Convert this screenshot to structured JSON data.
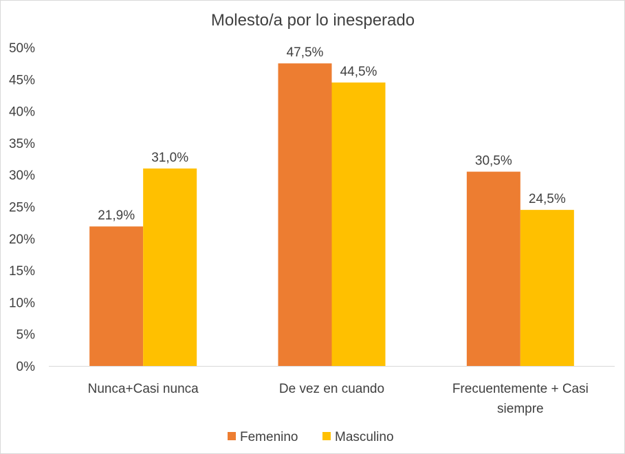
{
  "chart_data": {
    "type": "bar",
    "title": "Molesto/a por lo inesperado",
    "categories": [
      [
        "Nunca+Casi nunca"
      ],
      [
        "De vez en cuando"
      ],
      [
        "Frecuentemente + Casi",
        "siempre"
      ]
    ],
    "series": [
      {
        "name": "Femenino",
        "color": "#ED7D31",
        "values": [
          21.9,
          47.5,
          30.5
        ],
        "labels": [
          "21,9%",
          "47,5%",
          "30,5%"
        ]
      },
      {
        "name": "Masculino",
        "color": "#FFC000",
        "values": [
          31.0,
          44.5,
          24.5
        ],
        "labels": [
          "31,0%",
          "44,5%",
          "24,5%"
        ]
      }
    ],
    "yticks": [
      "0%",
      "5%",
      "10%",
      "15%",
      "20%",
      "25%",
      "30%",
      "35%",
      "40%",
      "45%",
      "50%"
    ],
    "ylim": [
      0,
      50
    ],
    "grid": false,
    "legend_position": "bottom"
  }
}
